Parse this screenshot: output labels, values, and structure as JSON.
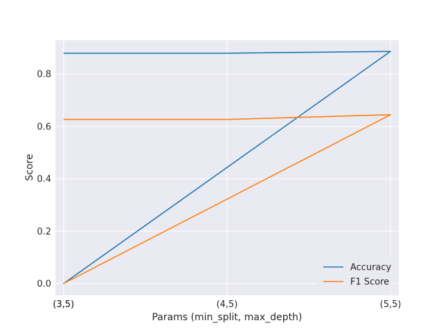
{
  "chart_data": {
    "type": "line",
    "title": "",
    "xlabel": "Params (min_split, max_depth)",
    "ylabel": "Score",
    "x": [
      "(3,5)",
      "(3,5)",
      "(4,5)",
      "(5,5)"
    ],
    "xticks": [
      "(3,5)",
      "(3,5)",
      "(4,5)",
      "(5,5)"
    ],
    "xlim": [
      -0.05,
      2.05
    ],
    "ylim": [
      -0.045,
      0.93
    ],
    "yticks": [
      0.0,
      0.2,
      0.4,
      0.6,
      0.8
    ],
    "ytick_labels": [
      "0.0",
      "0.2",
      "0.4",
      "0.6",
      "0.8"
    ],
    "grid": true,
    "legend_position": "bottom-right",
    "series": [
      {
        "name": "Accuracy",
        "color": "#1f77b4",
        "points": [
          [
            0,
            0.88
          ],
          [
            1,
            0.88
          ],
          [
            2,
            0.887
          ],
          [
            0,
            0.0
          ],
          [
            2,
            0.887
          ]
        ]
      },
      {
        "name": "F1 Score",
        "color": "#ff7f0e",
        "points": [
          [
            0,
            0.627
          ],
          [
            1,
            0.627
          ],
          [
            2,
            0.645
          ],
          [
            0,
            0.0
          ],
          [
            2,
            0.645
          ]
        ]
      }
    ]
  }
}
